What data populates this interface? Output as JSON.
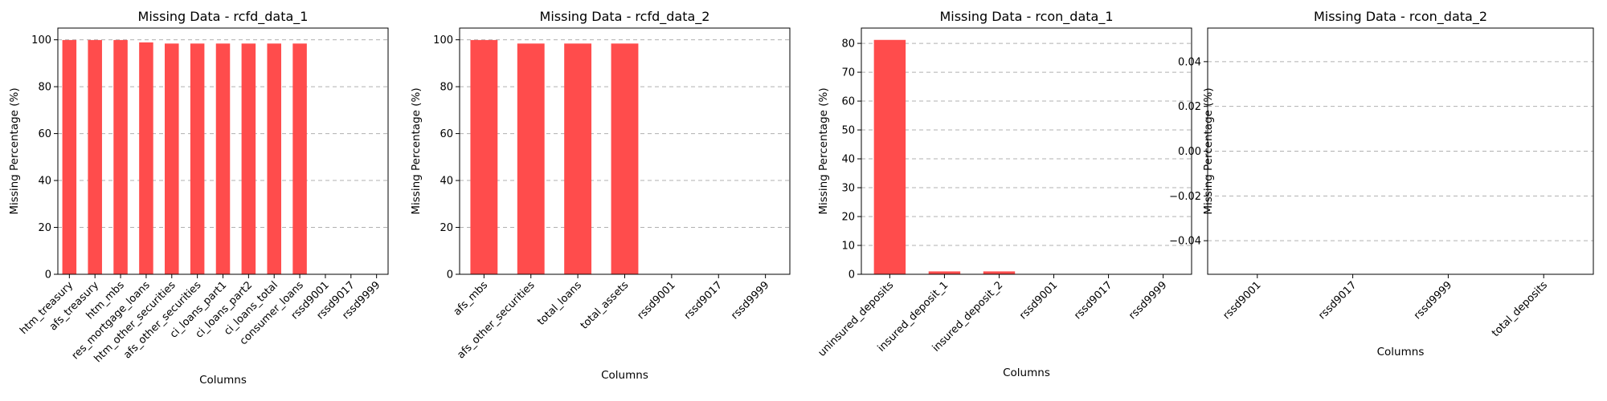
{
  "chart_data": [
    {
      "type": "bar",
      "title": "Missing Data - rcfd_data_1",
      "xlabel": "Columns",
      "ylabel": "Missing Percentage (%)",
      "categories": [
        "htm_treasury",
        "afs_treasury",
        "htm_mbs",
        "res_mortgage_loans",
        "htm_other_securities",
        "afs_other_securities",
        "ci_loans_part1",
        "ci_loans_part2",
        "ci_loans_total",
        "consumer_loans",
        "rssd9001",
        "rssd9017",
        "rssd9999"
      ],
      "values": [
        99.9,
        99.9,
        99.9,
        98.9,
        98.4,
        98.4,
        98.4,
        98.4,
        98.4,
        98.4,
        0,
        0,
        0
      ],
      "ylim": [
        0,
        105
      ],
      "yticks": [
        0,
        20,
        40,
        60,
        80,
        100
      ],
      "ytick_labels": [
        "0",
        "20",
        "40",
        "60",
        "80",
        "100"
      ],
      "color": "#ff4c4c",
      "grid": "y"
    },
    {
      "type": "bar",
      "title": "Missing Data - rcfd_data_2",
      "xlabel": "Columns",
      "ylabel": "Missing Percentage (%)",
      "categories": [
        "afs_mbs",
        "afs_other_securities",
        "total_loans",
        "total_assets",
        "rssd9001",
        "rssd9017",
        "rssd9999"
      ],
      "values": [
        99.9,
        98.4,
        98.4,
        98.4,
        0,
        0,
        0
      ],
      "ylim": [
        0,
        105
      ],
      "yticks": [
        0,
        20,
        40,
        60,
        80,
        100
      ],
      "ytick_labels": [
        "0",
        "20",
        "40",
        "60",
        "80",
        "100"
      ],
      "color": "#ff4c4c",
      "grid": "y"
    },
    {
      "type": "bar",
      "title": "Missing Data - rcon_data_1",
      "xlabel": "Columns",
      "ylabel": "Missing Percentage (%)",
      "categories": [
        "uninsured_deposits",
        "insured_deposit_1",
        "insured_deposit_2",
        "rssd9001",
        "rssd9017",
        "rssd9999"
      ],
      "values": [
        81.2,
        1.0,
        1.0,
        0,
        0,
        0
      ],
      "ylim": [
        0,
        85.3
      ],
      "yticks": [
        0,
        10,
        20,
        30,
        40,
        50,
        60,
        70,
        80
      ],
      "ytick_labels": [
        "0",
        "10",
        "20",
        "30",
        "40",
        "50",
        "60",
        "70",
        "80"
      ],
      "color": "#ff4c4c",
      "grid": "y"
    },
    {
      "type": "bar",
      "title": "Missing Data - rcon_data_2",
      "xlabel": "Columns",
      "ylabel": "Missing Percentage (%)",
      "categories": [
        "rssd9001",
        "rssd9017",
        "rssd9999",
        "total_deposits"
      ],
      "values": [
        0,
        0,
        0,
        0
      ],
      "ylim": [
        -0.055,
        0.055
      ],
      "yticks": [
        -0.04,
        -0.02,
        0.0,
        0.02,
        0.04
      ],
      "ytick_labels": [
        "−0.04",
        "−0.02",
        "0.00",
        "0.02",
        "0.04"
      ],
      "color": "#ff4c4c",
      "grid": "y"
    }
  ]
}
